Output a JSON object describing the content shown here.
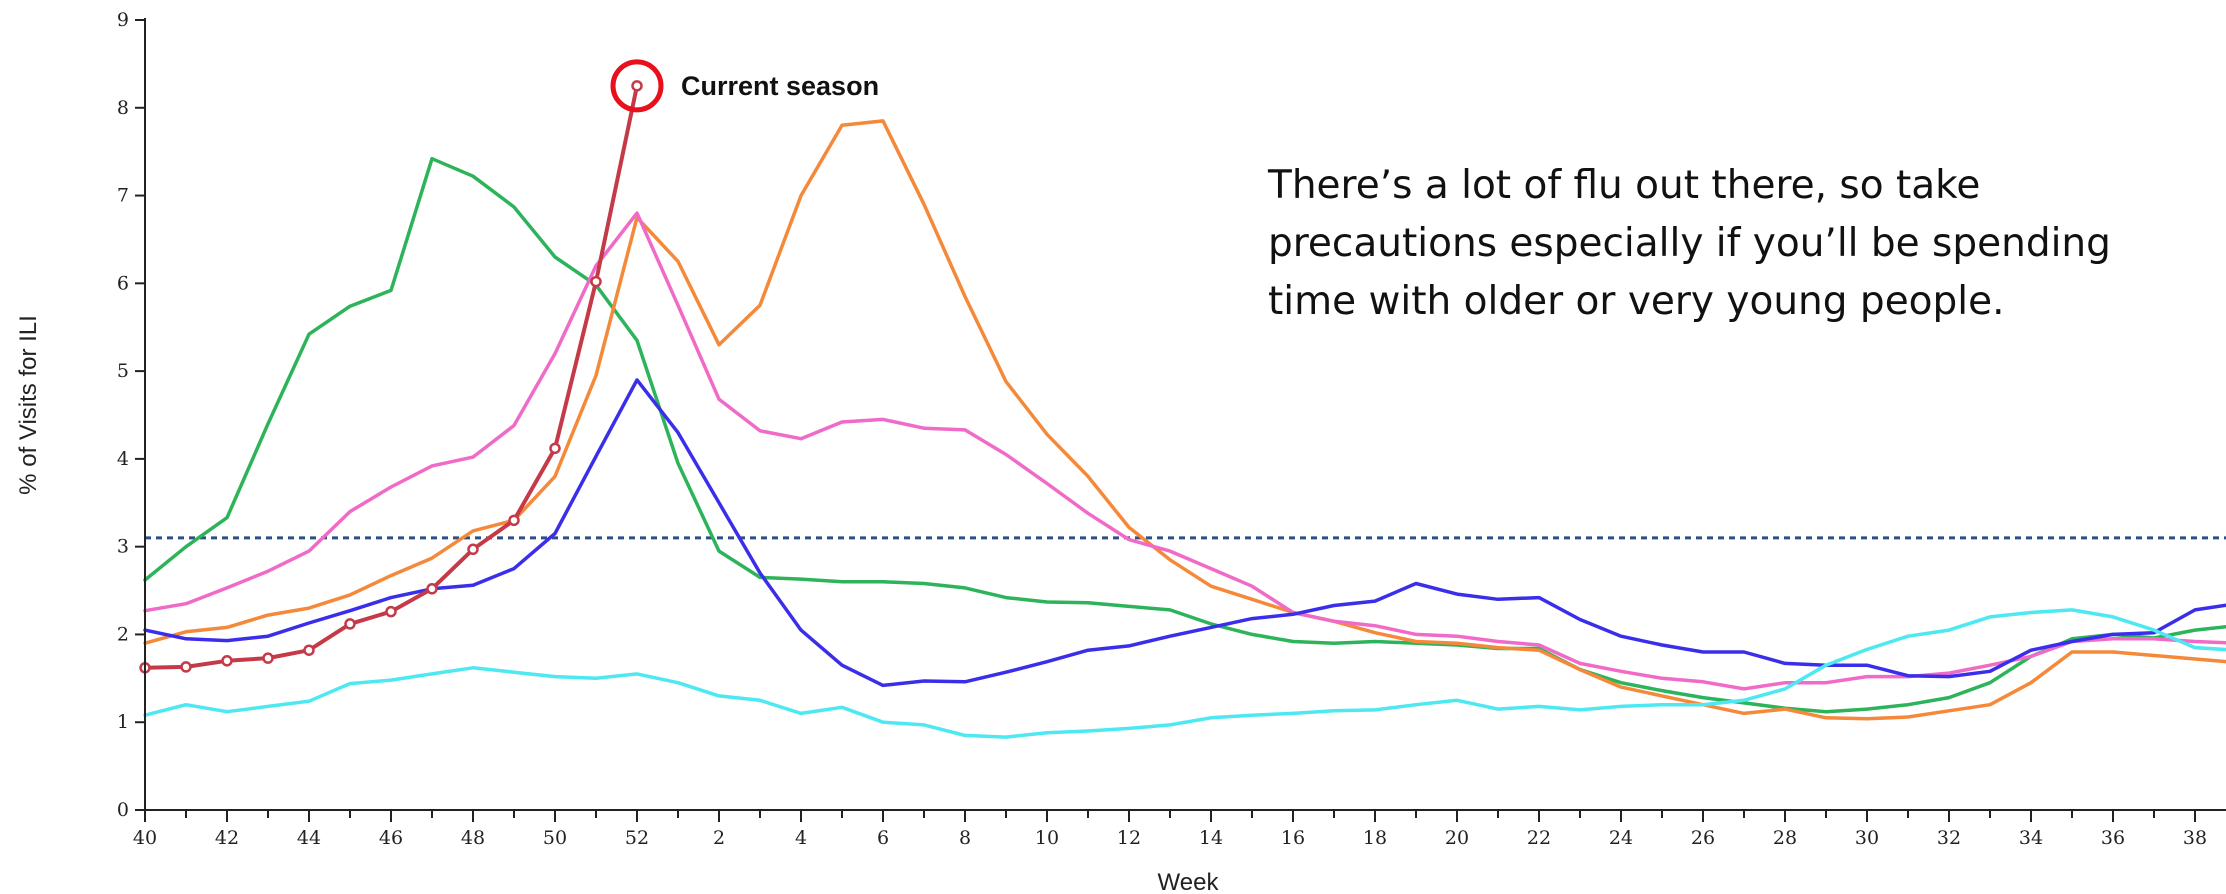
{
  "chart_data": {
    "type": "line",
    "title": "",
    "xlabel": "Week",
    "ylabel": "% of Visits for ILI",
    "ylim": [
      0,
      9
    ],
    "y_ticks": [
      "0",
      "1",
      "2",
      "3",
      "4",
      "5",
      "6",
      "7",
      "8",
      "9"
    ],
    "x_ticks": [
      "40",
      "42",
      "44",
      "46",
      "48",
      "50",
      "52",
      "2",
      "4",
      "6",
      "8",
      "10",
      "12",
      "14",
      "16",
      "18",
      "20",
      "22",
      "24",
      "26",
      "28",
      "30",
      "32",
      "34",
      "36",
      "38"
    ],
    "weeks": [
      40,
      41,
      42,
      43,
      44,
      45,
      46,
      47,
      48,
      49,
      50,
      51,
      52,
      1,
      2,
      3,
      4,
      5,
      6,
      7,
      8,
      9,
      10,
      11,
      12,
      13,
      14,
      15,
      16,
      17,
      18,
      19,
      20,
      21,
      22,
      23,
      24,
      25,
      26,
      27,
      28,
      29,
      30,
      31,
      32,
      33,
      34,
      35,
      36,
      37,
      38,
      39
    ],
    "baseline": 3.1,
    "annotation": "Current season",
    "note": [
      "There’s a lot of flu out there, so take",
      "precautions especially if you’ll be spending",
      "time with older or very young people."
    ],
    "series": [
      {
        "color": "#2db35a",
        "current": false,
        "values": [
          2.62,
          3.0,
          3.33,
          4.4,
          5.42,
          5.74,
          5.92,
          7.42,
          7.22,
          6.87,
          6.3,
          5.98,
          5.35,
          3.95,
          2.95,
          2.65,
          2.63,
          2.6,
          2.6,
          2.58,
          2.53,
          2.42,
          2.37,
          2.36,
          2.32,
          2.28,
          2.12,
          2.0,
          1.92,
          1.9,
          1.92,
          1.9,
          1.88,
          1.84,
          1.84,
          1.6,
          1.45,
          1.36,
          1.28,
          1.22,
          1.16,
          1.12,
          1.15,
          1.2,
          1.28,
          1.45,
          1.75,
          1.95,
          2.0,
          1.96,
          2.05,
          2.1
        ]
      },
      {
        "color": "#f5893a",
        "current": false,
        "values": [
          1.9,
          2.03,
          2.08,
          2.22,
          2.3,
          2.45,
          2.67,
          2.87,
          3.18,
          3.3,
          3.8,
          4.95,
          6.75,
          6.25,
          5.3,
          5.75,
          7.0,
          7.8,
          7.85,
          6.9,
          5.85,
          4.88,
          4.28,
          3.8,
          3.22,
          2.85,
          2.55,
          2.4,
          2.25,
          2.15,
          2.02,
          1.92,
          1.9,
          1.85,
          1.82,
          1.6,
          1.4,
          1.3,
          1.2,
          1.1,
          1.15,
          1.05,
          1.04,
          1.06,
          1.13,
          1.2,
          1.45,
          1.8,
          1.8,
          1.76,
          1.72,
          1.68
        ]
      },
      {
        "color": "#f06ac8",
        "current": false,
        "values": [
          2.27,
          2.35,
          2.53,
          2.72,
          2.95,
          3.4,
          3.68,
          3.92,
          4.02,
          4.38,
          5.2,
          6.2,
          6.8,
          5.75,
          4.68,
          4.32,
          4.23,
          4.42,
          4.45,
          4.35,
          4.33,
          4.05,
          3.72,
          3.38,
          3.08,
          2.95,
          2.75,
          2.55,
          2.25,
          2.15,
          2.1,
          2.0,
          1.98,
          1.92,
          1.88,
          1.67,
          1.58,
          1.5,
          1.46,
          1.38,
          1.45,
          1.45,
          1.52,
          1.52,
          1.56,
          1.65,
          1.75,
          1.92,
          1.95,
          1.95,
          1.92,
          1.9
        ]
      },
      {
        "color": "#3b2eea",
        "current": false,
        "values": [
          2.05,
          1.95,
          1.93,
          1.98,
          2.13,
          2.27,
          2.42,
          2.52,
          2.56,
          2.75,
          3.15,
          4.03,
          4.9,
          4.3,
          3.5,
          2.7,
          2.05,
          1.65,
          1.42,
          1.47,
          1.46,
          1.57,
          1.69,
          1.82,
          1.87,
          1.98,
          2.08,
          2.18,
          2.23,
          2.33,
          2.38,
          2.58,
          2.46,
          2.4,
          2.42,
          2.17,
          1.98,
          1.88,
          1.8,
          1.8,
          1.67,
          1.65,
          1.65,
          1.53,
          1.52,
          1.58,
          1.82,
          1.92,
          2.0,
          2.02,
          2.28,
          2.35
        ]
      },
      {
        "color": "#4de8f2",
        "current": false,
        "values": [
          1.08,
          1.2,
          1.12,
          1.18,
          1.24,
          1.44,
          1.48,
          1.55,
          1.62,
          1.57,
          1.52,
          1.5,
          1.55,
          1.45,
          1.3,
          1.25,
          1.1,
          1.17,
          1.0,
          0.97,
          0.85,
          0.83,
          0.88,
          0.9,
          0.93,
          0.97,
          1.05,
          1.08,
          1.1,
          1.13,
          1.14,
          1.2,
          1.25,
          1.15,
          1.18,
          1.14,
          1.18,
          1.2,
          1.2,
          1.25,
          1.38,
          1.65,
          1.83,
          1.98,
          2.05,
          2.2,
          2.25,
          2.28,
          2.2,
          2.05,
          1.85,
          1.82
        ]
      },
      {
        "color": "#c53a48",
        "current": true,
        "values": [
          1.62,
          1.63,
          1.7,
          1.73,
          1.82,
          2.12,
          2.26,
          2.52,
          2.97,
          3.3,
          4.12,
          6.02,
          8.25
        ]
      }
    ]
  }
}
